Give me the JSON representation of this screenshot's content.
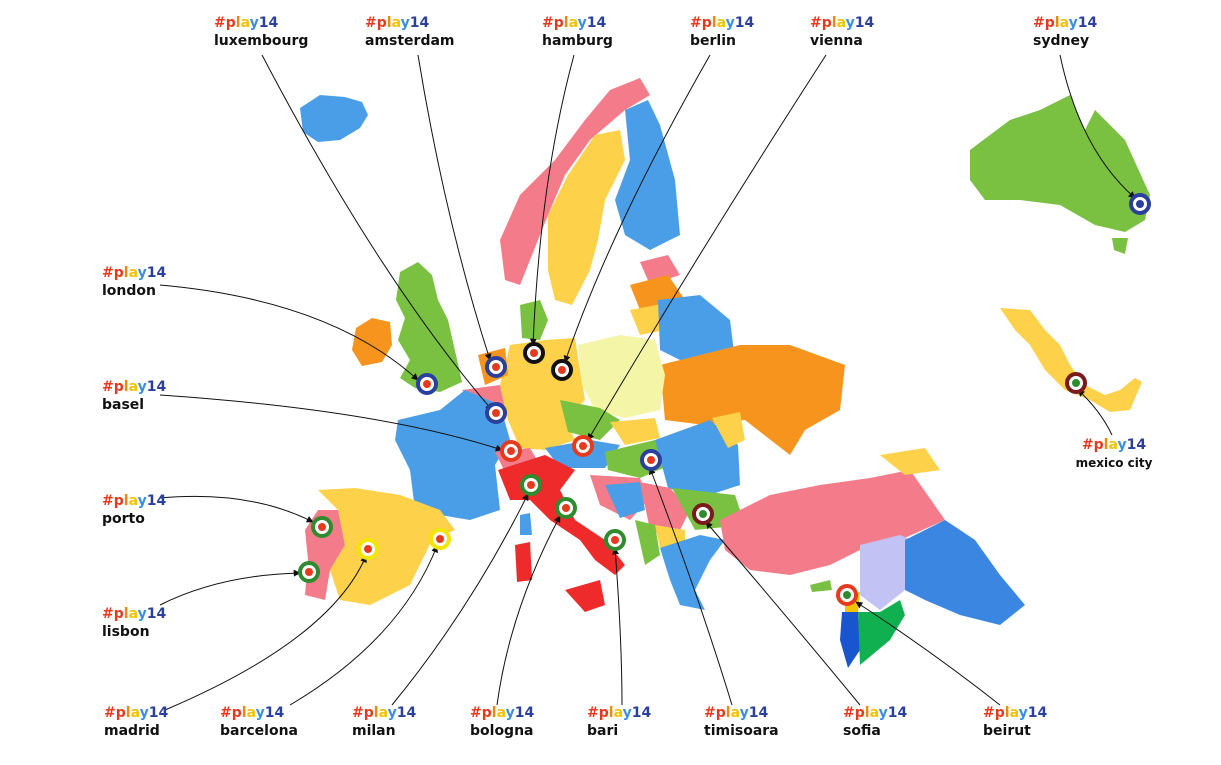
{
  "hashtag": {
    "hash": "#",
    "p": "p",
    "l": "l",
    "a": "a",
    "y": "y",
    "num": "14"
  },
  "cities": [
    {
      "id": "luxembourg",
      "name": "luxembourg",
      "label_pos": "top",
      "ring": "#2a3f9e",
      "dot": "#e63a1e"
    },
    {
      "id": "amsterdam",
      "name": "amsterdam",
      "label_pos": "top",
      "ring": "#2a3f9e",
      "dot": "#e63a1e"
    },
    {
      "id": "hamburg",
      "name": "hamburg",
      "label_pos": "top",
      "ring": "#111111",
      "dot": "#e63a1e"
    },
    {
      "id": "berlin",
      "name": "berlin",
      "label_pos": "top",
      "ring": "#111111",
      "dot": "#e63a1e"
    },
    {
      "id": "vienna",
      "name": "vienna",
      "label_pos": "top",
      "ring": "#e63a1e",
      "dot": "#e63a1e"
    },
    {
      "id": "sydney",
      "name": "sydney",
      "label_pos": "top",
      "ring": "#2a3f9e",
      "dot": "#ffffff"
    },
    {
      "id": "london",
      "name": "london",
      "label_pos": "left",
      "ring": "#2a3f9e",
      "dot": "#e63a1e"
    },
    {
      "id": "basel",
      "name": "basel",
      "label_pos": "left",
      "ring": "#e63a1e",
      "dot": "#e63a1e"
    },
    {
      "id": "porto",
      "name": "porto",
      "label_pos": "left",
      "ring": "#2e8b2e",
      "dot": "#e63a1e"
    },
    {
      "id": "lisbon",
      "name": "lisbon",
      "label_pos": "left",
      "ring": "#2e8b2e",
      "dot": "#e63a1e"
    },
    {
      "id": "madrid",
      "name": "madrid",
      "label_pos": "bottom",
      "ring": "#f2e600",
      "dot": "#e63a1e"
    },
    {
      "id": "barcelona",
      "name": "barcelona",
      "label_pos": "bottom",
      "ring": "#f2e600",
      "dot": "#e63a1e"
    },
    {
      "id": "milan",
      "name": "milan",
      "label_pos": "bottom",
      "ring": "#2e8b2e",
      "dot": "#e63a1e"
    },
    {
      "id": "bologna",
      "name": "bologna",
      "label_pos": "bottom",
      "ring": "#2e8b2e",
      "dot": "#e63a1e"
    },
    {
      "id": "bari",
      "name": "bari",
      "label_pos": "bottom",
      "ring": "#2e8b2e",
      "dot": "#e63a1e"
    },
    {
      "id": "timisoara",
      "name": "timisoara",
      "label_pos": "bottom",
      "ring": "#2a3f9e",
      "dot": "#e63a1e"
    },
    {
      "id": "sofia",
      "name": "sofia",
      "label_pos": "bottom",
      "ring": "#7a1a1a",
      "dot": "#2e8b2e"
    },
    {
      "id": "beirut",
      "name": "beirut",
      "label_pos": "bottom",
      "ring": "#e63a1e",
      "dot": "#2e8b2e"
    },
    {
      "id": "mexico",
      "name": "mexico city",
      "label_pos": "bottom",
      "ring": "#7a1a1a",
      "dot": "#2e8b2e"
    }
  ],
  "colors": {
    "pink": "#f47c8a",
    "blue": "#4a9ee8",
    "orange": "#f7941d",
    "green": "#7ac142",
    "yellow": "#fdd14a",
    "paleyellow": "#f5f5a8",
    "red": "#ee2a2a",
    "lilac": "#c2c2f5",
    "darkblue": "#3a86e0",
    "emerald": "#10b050",
    "sea": "#1a55d0"
  }
}
